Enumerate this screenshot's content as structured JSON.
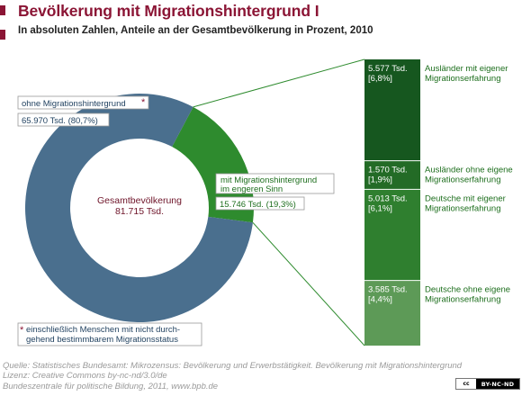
{
  "title": "Bevölkerung mit Migrationshintergrund I",
  "subtitle": "In absoluten Zahlen, Anteile an der Gesamtbevölkerung in Prozent, 2010",
  "colors": {
    "title": "#8b1535",
    "ohne": "#4a6f8e",
    "mit": "#2e8b2e",
    "bar_1": "#16571f",
    "bar_2": "#236b26",
    "bar_3": "#2f7f2f",
    "bar_4": "#5d9a57",
    "connector": "#2e8b2e",
    "total_text": "#6e1429"
  },
  "donut": {
    "center_label": "Gesamtbevölkerung",
    "center_value": "81.715 Tsd.",
    "label_ohne": "ohne Migrationshintergrund",
    "label_ohne_marker": "*",
    "value_ohne": "65.970 Tsd. (80,7%)",
    "label_mit_line1": "mit Migrationshintergrund",
    "label_mit_line2": "im engeren Sinn",
    "value_mit": "15.746 Tsd. (19,3%)"
  },
  "footnote": {
    "marker": "*",
    "line1": "einschließlich Menschen mit nicht durch-",
    "line2": "gehend bestimmbarem Migrationsstatus"
  },
  "footer": {
    "line1": "Quelle: Statistisches Bundesamt: Mikrozensus: Bevölkerung und Erwerbstätigkeit. Bevölkerung mit Migrationshintergrund",
    "line2": "Lizenz: Creative Commons by-nc-nd/3.0/de",
    "line3": "Bundeszentrale für politische Bildung, 2011, www.bpb.de"
  },
  "license_badge": {
    "left": "cc",
    "right": "BY-NC-ND"
  },
  "chart_data": [
    {
      "type": "pie",
      "categories": [
        "ohne Migrationshintergrund",
        "mit Migrationshintergrund im engeren Sinn"
      ],
      "values": [
        65970,
        15746
      ],
      "percent": [
        80.7,
        19.3
      ],
      "unit": "Tsd.",
      "total": 81715
    },
    {
      "type": "bar",
      "stacked": true,
      "categories": [
        "Ausländer mit eigener Migrationserfahrung",
        "Ausländer ohne eigene Migrationserfahrung",
        "Deutsche mit eigener Migrationserfahrung",
        "Deutsche ohne eigene Migrationserfahrung"
      ],
      "segments": [
        {
          "label_line1": "Ausländer mit eigener",
          "label_line2": "Migrationserfahrung",
          "value": 5577,
          "value_label": "5.577 Tsd.",
          "percent_label": "[6,8%]"
        },
        {
          "label_line1": "Ausländer ohne eigene",
          "label_line2": "Migrationserfahrung",
          "value": 1570,
          "value_label": "1.570 Tsd.",
          "percent_label": "[1,9%]"
        },
        {
          "label_line1": "Deutsche mit eigener",
          "label_line2": "Migrationserfahrung",
          "value": 5013,
          "value_label": "5.013 Tsd.",
          "percent_label": "[6,1%]"
        },
        {
          "label_line1": "Deutsche ohne eigene",
          "label_line2": "Migrationserfahrung",
          "value": 3585,
          "value_label": "3.585 Tsd.",
          "percent_label": "[4,4%]"
        }
      ],
      "unit": "Tsd."
    }
  ]
}
